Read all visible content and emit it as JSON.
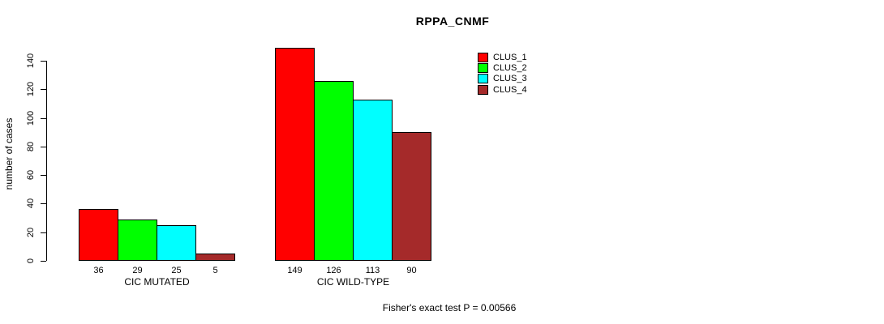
{
  "title": "RPPA_CNMF",
  "footer": "Fisher's exact test P = 0.00566",
  "chart_data": {
    "type": "bar",
    "title": "RPPA_CNMF",
    "categories": [
      "CIC MUTATED",
      "CIC WILD-TYPE"
    ],
    "series": [
      {
        "name": "CLUS_1",
        "color": "#FF0000",
        "values": [
          36,
          149
        ]
      },
      {
        "name": "CLUS_2",
        "color": "#00FF00",
        "values": [
          29,
          126
        ]
      },
      {
        "name": "CLUS_3",
        "color": "#00FFFF",
        "values": [
          25,
          113
        ]
      },
      {
        "name": "CLUS_4",
        "color": "#A52A2A",
        "values": [
          5,
          90
        ]
      }
    ],
    "xlabel": "",
    "ylabel": "number of cases",
    "yticks": [
      0,
      20,
      40,
      60,
      80,
      100,
      120,
      140
    ],
    "ylim": [
      0,
      140
    ],
    "grid": false,
    "legend_position": "top-right",
    "bar_value_labels": true,
    "annotation": "Fisher's exact test P = 0.00566",
    "axis_color": "#000000"
  }
}
